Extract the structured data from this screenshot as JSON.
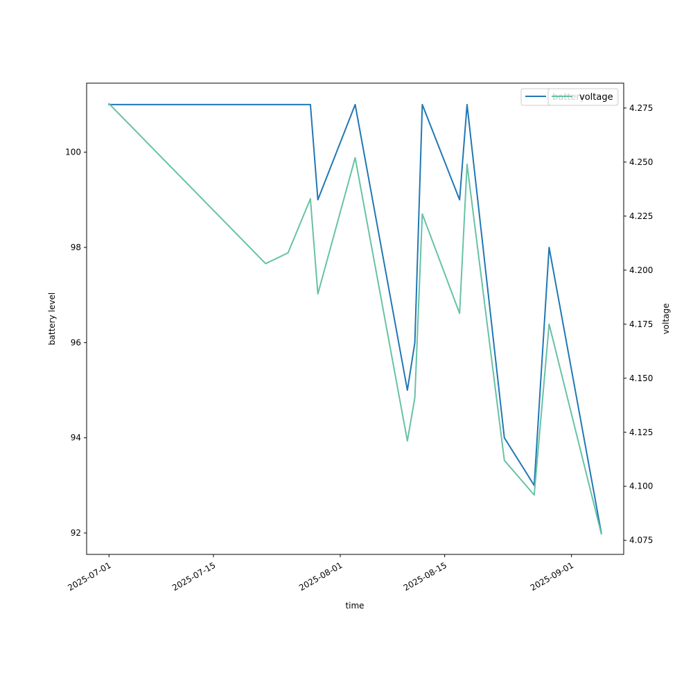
{
  "chart_data": {
    "type": "line",
    "title": "",
    "xlabel": "time",
    "ylabel_left": "battery level",
    "ylabel_right": "voltage",
    "x_ticks": [
      "2025-07-01",
      "2025-07-15",
      "2025-08-01",
      "2025-08-15",
      "2025-09-01"
    ],
    "y_left_ticks": [
      92,
      94,
      96,
      98,
      100
    ],
    "y_right_ticks": [
      "4.075",
      "4.100",
      "4.125",
      "4.150",
      "4.175",
      "4.200",
      "4.225",
      "4.250",
      "4.275"
    ],
    "ylim_left": [
      91.55,
      101.45
    ],
    "ylim_right": [
      4.0685,
      4.2865
    ],
    "xlim": [
      "2025-06-28",
      "2025-09-08"
    ],
    "grid": false,
    "series": [
      {
        "name": "battery",
        "axis": "left",
        "color": "#1f77b4",
        "points": [
          {
            "x": "2025-07-01",
            "y": 101
          },
          {
            "x": "2025-07-28",
            "y": 101
          },
          {
            "x": "2025-07-29",
            "y": 99
          },
          {
            "x": "2025-08-03",
            "y": 101
          },
          {
            "x": "2025-08-10",
            "y": 95
          },
          {
            "x": "2025-08-11",
            "y": 96
          },
          {
            "x": "2025-08-12",
            "y": 101
          },
          {
            "x": "2025-08-17",
            "y": 99
          },
          {
            "x": "2025-08-18",
            "y": 101
          },
          {
            "x": "2025-08-23",
            "y": 94
          },
          {
            "x": "2025-08-27",
            "y": 93
          },
          {
            "x": "2025-08-29",
            "y": 98
          },
          {
            "x": "2025-09-05",
            "y": 92
          }
        ]
      },
      {
        "name": "voltage",
        "axis": "right",
        "color": "#66c2a5",
        "points": [
          {
            "x": "2025-07-01",
            "y": 4.277
          },
          {
            "x": "2025-07-22",
            "y": 4.203
          },
          {
            "x": "2025-07-25",
            "y": 4.208
          },
          {
            "x": "2025-07-28",
            "y": 4.233
          },
          {
            "x": "2025-07-29",
            "y": 4.189
          },
          {
            "x": "2025-08-03",
            "y": 4.252
          },
          {
            "x": "2025-08-10",
            "y": 4.121
          },
          {
            "x": "2025-08-11",
            "y": 4.141
          },
          {
            "x": "2025-08-12",
            "y": 4.226
          },
          {
            "x": "2025-08-17",
            "y": 4.18
          },
          {
            "x": "2025-08-18",
            "y": 4.249
          },
          {
            "x": "2025-08-23",
            "y": 4.112
          },
          {
            "x": "2025-08-27",
            "y": 4.096
          },
          {
            "x": "2025-08-29",
            "y": 4.175
          },
          {
            "x": "2025-09-05",
            "y": 4.078
          }
        ]
      }
    ],
    "legends": [
      {
        "placement": "top-right",
        "entries": [
          "battery"
        ],
        "label_color": "#66c2a5"
      },
      {
        "placement": "top-right",
        "entries": [
          "voltage"
        ],
        "label_color": "#000000"
      }
    ]
  }
}
